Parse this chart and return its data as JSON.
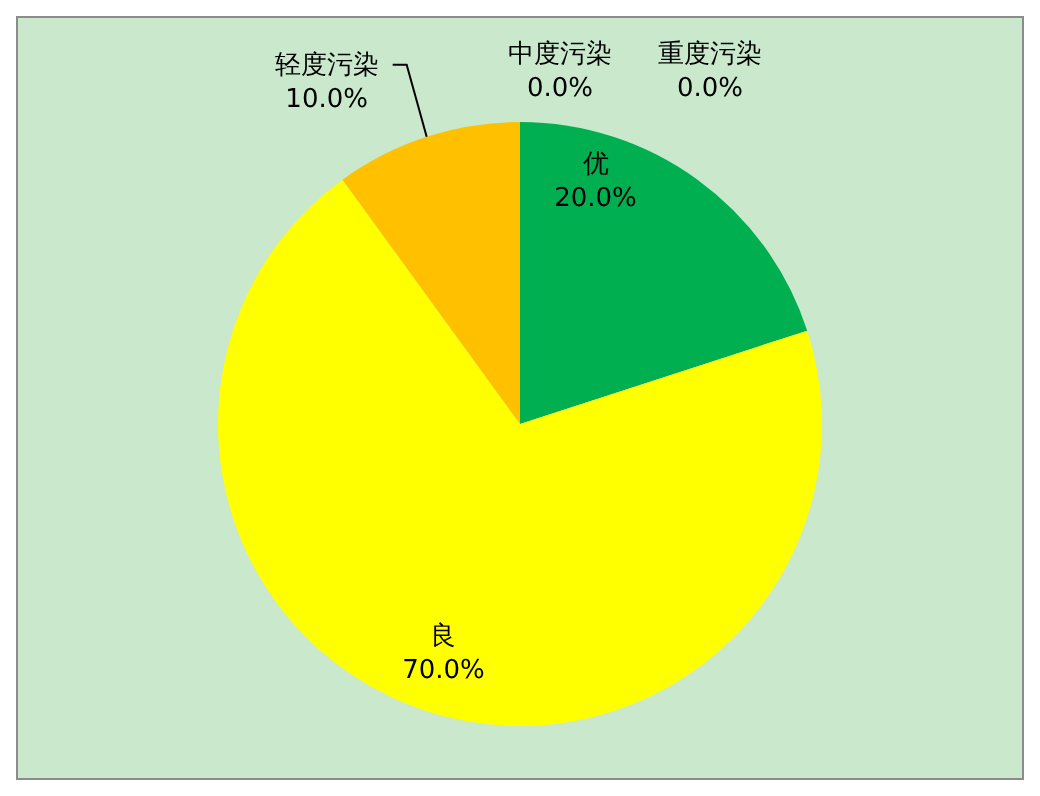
{
  "chart_data": {
    "type": "pie",
    "categories": [
      "优",
      "良",
      "轻度污染",
      "中度污染",
      "重度污染"
    ],
    "values": [
      20,
      70,
      10,
      0,
      0
    ],
    "colors": [
      "#00b050",
      "#ffff00",
      "#ffc000",
      "#ff0000",
      "#c00000"
    ],
    "value_labels": [
      "20.0%",
      "70.0%",
      "10.0%",
      "0.0%",
      "0.0%"
    ],
    "legend": false
  }
}
